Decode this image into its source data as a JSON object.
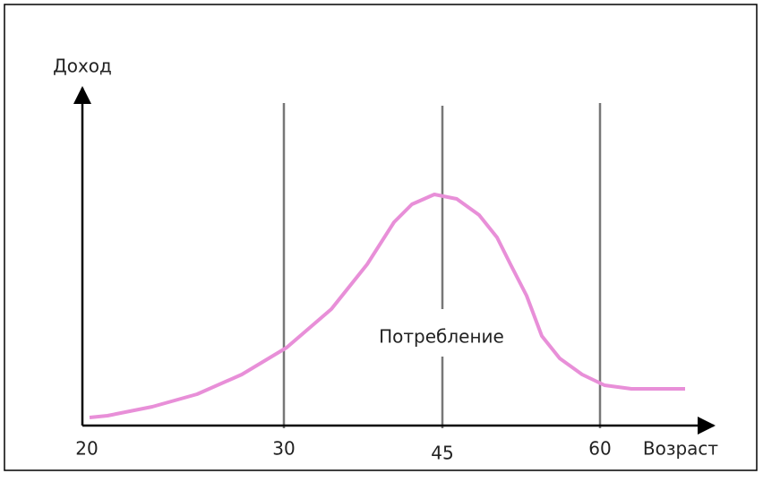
{
  "axes": {
    "y_label": "Доход",
    "x_label": "Возраст",
    "ticks": [
      "20",
      "30",
      "45",
      "60"
    ]
  },
  "curve": {
    "label": "Потребление"
  }
}
